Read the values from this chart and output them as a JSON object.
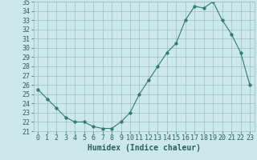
{
  "x": [
    0,
    1,
    2,
    3,
    4,
    5,
    6,
    7,
    8,
    9,
    10,
    11,
    12,
    13,
    14,
    15,
    16,
    17,
    18,
    19,
    20,
    21,
    22,
    23
  ],
  "y": [
    25.5,
    24.5,
    23.5,
    22.5,
    22.0,
    22.0,
    21.5,
    21.3,
    21.3,
    22.0,
    23.0,
    25.0,
    26.5,
    28.0,
    29.5,
    30.5,
    33.0,
    34.5,
    34.3,
    35.0,
    33.0,
    31.5,
    29.5,
    26.0
  ],
  "xlabel": "Humidex (Indice chaleur)",
  "ylim": [
    21,
    35
  ],
  "xlim": [
    -0.5,
    23.5
  ],
  "yticks": [
    21,
    22,
    23,
    24,
    25,
    26,
    27,
    28,
    29,
    30,
    31,
    32,
    33,
    34,
    35
  ],
  "xticks": [
    0,
    1,
    2,
    3,
    4,
    5,
    6,
    7,
    8,
    9,
    10,
    11,
    12,
    13,
    14,
    15,
    16,
    17,
    18,
    19,
    20,
    21,
    22,
    23
  ],
  "xtick_labels": [
    "0",
    "1",
    "2",
    "3",
    "4",
    "5",
    "6",
    "7",
    "8",
    "9",
    "10",
    "11",
    "12",
    "13",
    "14",
    "15",
    "16",
    "17",
    "18",
    "19",
    "20",
    "21",
    "22",
    "23"
  ],
  "line_color": "#2e7d6b",
  "marker": "o",
  "marker_size": 2.5,
  "bg_color": "#cce8e8",
  "grid_color": "#9dbfbf",
  "font_color": "#2e6060",
  "xlabel_fontsize": 7,
  "tick_fontsize": 6
}
